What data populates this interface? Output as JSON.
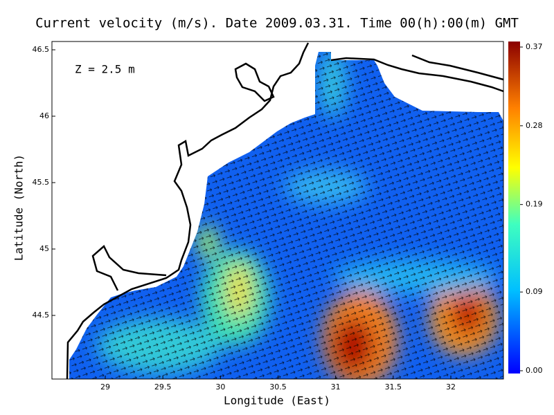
{
  "chart_data": {
    "type": "map",
    "title": "Current velocity (m/s). Date 2009.03.31. Time 00(h):00(m) GMT",
    "annotation": "Z = 2.5 m",
    "x_label": "Longitude (East)",
    "y_label": "Latitude (North)",
    "xlim": [
      28.537,
      32.457
    ],
    "xticks": [
      29,
      29.5,
      30,
      30.5,
      31,
      31.5,
      32
    ],
    "ylim": [
      44.021,
      46.5625
    ],
    "yticks": [
      44.5,
      45,
      45.5,
      46,
      46.5
    ],
    "colorbar": {
      "lim": [
        0,
        0.37
      ],
      "ticks": [
        {
          "value": 0,
          "label": "0.00"
        },
        0.09,
        0.19,
        0.28,
        0.37
      ]
    }
  }
}
